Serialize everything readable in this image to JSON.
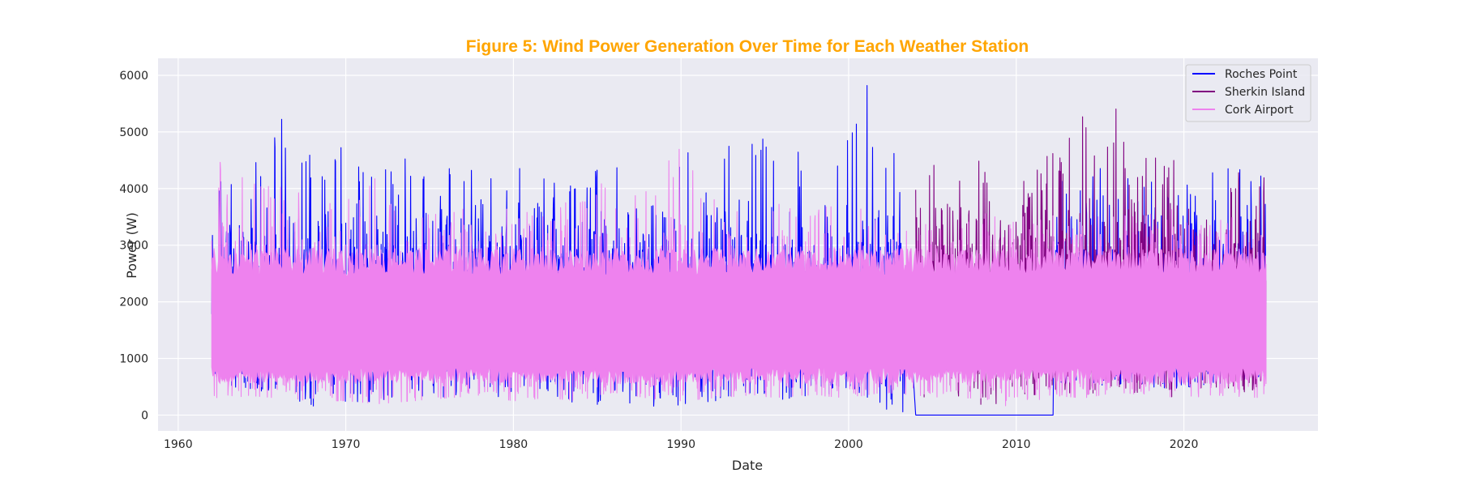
{
  "chart_data": {
    "type": "line",
    "title": "Figure 5: Wind Power Generation Over Time for Each Weather Station",
    "xlabel": "Date",
    "ylabel": "Power (W)",
    "xlim": [
      1958.8,
      2028.0
    ],
    "ylim": [
      -280,
      6300
    ],
    "x_ticks": [
      1960,
      1970,
      1980,
      1990,
      2000,
      2010,
      2020
    ],
    "y_ticks": [
      0,
      1000,
      2000,
      3000,
      4000,
      5000,
      6000
    ],
    "grid": true,
    "legend_position": "top-right",
    "colors": {
      "title": "#FFA500",
      "background": "#EAEAF2",
      "grid": "#FFFFFF"
    },
    "series": [
      {
        "name": "Roches Point",
        "color": "#0000FF",
        "x": [
          1962.0,
          1964.0,
          1966.0,
          1968.0,
          1970.0,
          1972.0,
          1974.0,
          1976.0,
          1978.0,
          1980.0,
          1982.0,
          1984.0,
          1986.0,
          1988.0,
          1990.0,
          1992.0,
          1994.0,
          1996.0,
          1998.0,
          2000.0,
          2001.0,
          2002.0,
          2003.0,
          2004.0,
          2006.0,
          2008.0,
          2010.0,
          2012.2,
          2012.3,
          2014.0,
          2016.0,
          2018.0,
          2020.0,
          2022.0,
          2024.9
        ],
        "peak": [
          4500,
          4200,
          5350,
          4900,
          4750,
          4500,
          4600,
          4450,
          4300,
          4450,
          4350,
          4300,
          4550,
          4900,
          4700,
          4550,
          5200,
          4900,
          4600,
          5100,
          6050,
          4600,
          4700,
          0,
          0,
          0,
          0,
          0,
          4100,
          4500,
          4300,
          4300,
          4500,
          4400,
          4300
        ],
        "trough": [
          600,
          450,
          400,
          150,
          200,
          250,
          200,
          300,
          350,
          300,
          250,
          200,
          100,
          80,
          150,
          250,
          300,
          200,
          350,
          400,
          300,
          0,
          0,
          0,
          0,
          0,
          0,
          0,
          600,
          500,
          550,
          500,
          450,
          550,
          700
        ],
        "gap": {
          "from": 2004.0,
          "to": 2012.2,
          "value": 0
        }
      },
      {
        "name": "Sherkin Island",
        "color": "#800080",
        "x": [
          2004.0,
          2005.0,
          2006.0,
          2007.0,
          2008.0,
          2009.0,
          2010.0,
          2011.0,
          2012.0,
          2013.0,
          2014.0,
          2015.0,
          2016.0,
          2017.0,
          2018.0,
          2019.0,
          2020.0,
          2021.0,
          2022.0,
          2023.0,
          2024.0,
          2024.9
        ],
        "peak": [
          4400,
          4500,
          4000,
          5000,
          4600,
          4300,
          4100,
          4500,
          4600,
          4800,
          5600,
          4500,
          5550,
          4300,
          4700,
          4400,
          4800,
          4900,
          5100,
          4400,
          4300,
          4350
        ],
        "trough": [
          0,
          0,
          350,
          300,
          0,
          0,
          400,
          350,
          450,
          400,
          350,
          400,
          450,
          350,
          400,
          300,
          350,
          400,
          450,
          350,
          400,
          450
        ]
      },
      {
        "name": "Cork Airport",
        "color": "#EE82EE",
        "x": [
          1962.0,
          1963.0,
          1964.0,
          1966.0,
          1968.0,
          1970.0,
          1972.0,
          1974.0,
          1976.0,
          1978.0,
          1980.0,
          1982.0,
          1984.0,
          1985.0,
          1986.0,
          1988.0,
          1990.0,
          1992.0,
          1994.0,
          1996.0,
          1997.0,
          1998.0,
          2000.0,
          2002.0,
          2004.0,
          2006.0,
          2008.0,
          2010.0,
          2012.0,
          2014.0,
          2016.0,
          2018.0,
          2020.0,
          2022.0,
          2024.9
        ],
        "peak": [
          5050,
          3900,
          4300,
          4250,
          3900,
          3800,
          4400,
          3800,
          3700,
          3800,
          3700,
          3600,
          3900,
          4550,
          4100,
          4000,
          5050,
          3800,
          3700,
          3800,
          4500,
          3700,
          3900,
          3600,
          3500,
          3400,
          3600,
          3500,
          3500,
          3700,
          3500,
          3600,
          3700,
          3600,
          3600
        ],
        "trough": [
          150,
          250,
          350,
          300,
          250,
          250,
          200,
          250,
          300,
          350,
          250,
          300,
          250,
          350,
          400,
          300,
          250,
          300,
          350,
          300,
          350,
          350,
          300,
          400,
          350,
          300,
          300,
          100,
          350,
          300,
          400,
          350,
          300,
          350,
          300
        ],
        "core_low": 700,
        "core_high": 2700
      }
    ]
  }
}
